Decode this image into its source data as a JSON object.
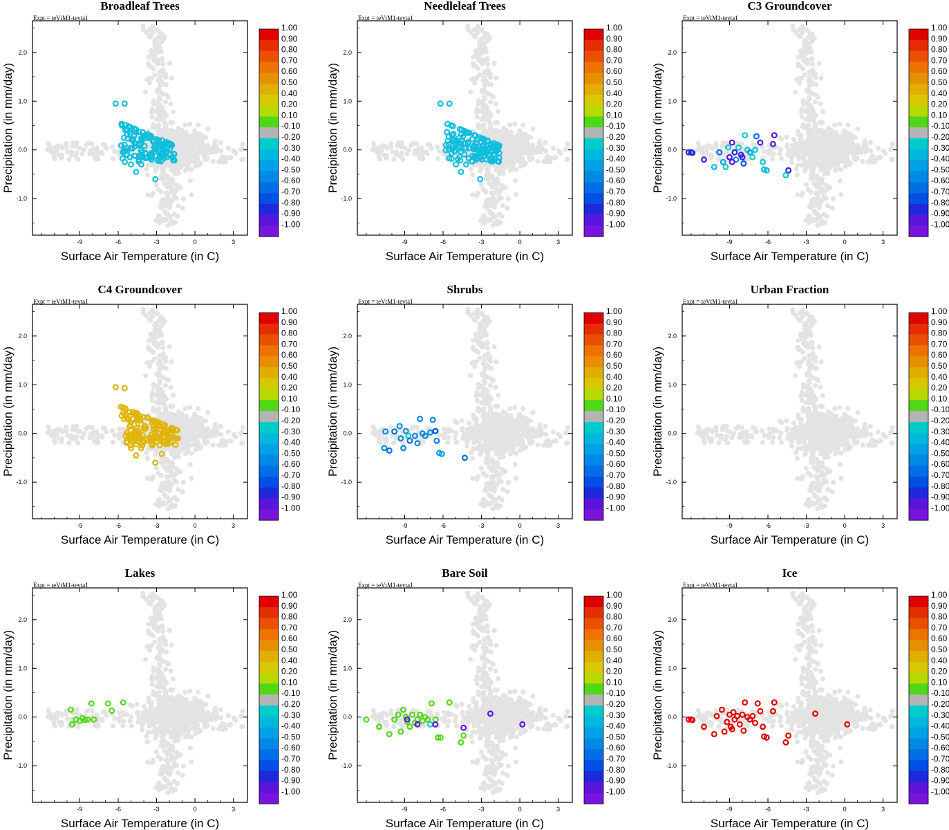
{
  "figure": {
    "expt_label": "Expt = teVtM1-tevta1",
    "xlabel": "Surface Air Temperature (in C)",
    "ylabel": "Precipitation (in mm/day)"
  },
  "colorbar": {
    "labels": [
      "1.00",
      "0.90",
      "0.80",
      "0.70",
      "0.60",
      "0.50",
      "0.40",
      "0.20",
      "0.10",
      "-0.10",
      "-0.20",
      "-0.30",
      "-0.40",
      "-0.50",
      "-0.60",
      "-0.70",
      "-0.80",
      "-0.90",
      "-1.00"
    ],
    "colors": [
      "#e00000",
      "#e62d00",
      "#eb5000",
      "#ee7200",
      "#e69000",
      "#e0ae00",
      "#d8c800",
      "#b7d800",
      "#50d818",
      "#b4b4b4",
      "#00cccc",
      "#00b8dc",
      "#00a0e6",
      "#0088e6",
      "#006ee6",
      "#0050e6",
      "#1e28dc",
      "#5a14dc",
      "#7814dc"
    ]
  },
  "chart_data": [
    {
      "type": "scatter",
      "title": "Broadleaf Trees",
      "xlabel": "Surface Air Temperature (in C)",
      "ylabel": "Precipitation (in mm/day)",
      "xlim": [
        -12.7,
        4.1
      ],
      "ylim": [
        -1.75,
        2.65
      ],
      "xticks": [
        "-9",
        "-6",
        "-3",
        "0",
        "3"
      ],
      "yticks": [
        "-1.0",
        "0.0",
        "1.0",
        "2.0"
      ],
      "background_color": "#e3e3e3",
      "highlight": {
        "color": "#10bedc",
        "cluster": {
          "x_range": [
            -5.8,
            -1.6
          ],
          "y_range": [
            -0.25,
            0.62
          ],
          "count": 130
        },
        "points": [
          [
            -6.2,
            0.95
          ],
          [
            -5.5,
            0.95
          ],
          [
            -3.1,
            -0.6
          ],
          [
            -4.6,
            -0.45
          ],
          [
            -4.2,
            -0.3
          ],
          [
            -5.0,
            -0.3
          ],
          [
            -2.0,
            -0.1
          ],
          [
            -3.4,
            -0.2
          ]
        ]
      }
    },
    {
      "type": "scatter",
      "title": "Needleleaf Trees",
      "xlabel": "Surface Air Temperature (in C)",
      "ylabel": "Precipitation (in mm/day)",
      "xlim": [
        -12.7,
        4.1
      ],
      "ylim": [
        -1.75,
        2.65
      ],
      "xticks": [
        "-9",
        "-6",
        "-3",
        "0",
        "3"
      ],
      "yticks": [
        "-1.0",
        "0.0",
        "1.0",
        "2.0"
      ],
      "background_color": "#e3e3e3",
      "highlight": {
        "color": "#10bedc",
        "cluster": {
          "x_range": [
            -5.8,
            -1.6
          ],
          "y_range": [
            -0.25,
            0.62
          ],
          "count": 130
        },
        "points": [
          [
            -6.2,
            0.95
          ],
          [
            -5.5,
            0.95
          ],
          [
            -3.1,
            -0.6
          ],
          [
            -4.6,
            -0.45
          ],
          [
            -4.2,
            -0.3
          ],
          [
            -5.0,
            -0.3
          ],
          [
            -2.0,
            -0.1
          ],
          [
            -3.4,
            -0.2
          ]
        ]
      }
    },
    {
      "type": "scatter",
      "title": "C3 Groundcover",
      "xlabel": "Surface Air Temperature (in C)",
      "ylabel": "Precipitation (in mm/day)",
      "xlim": [
        -12.7,
        4.1
      ],
      "ylim": [
        -1.75,
        2.65
      ],
      "xticks": [
        "-9",
        "-6",
        "-3",
        "0",
        "3"
      ],
      "yticks": [
        "-1.0",
        "0.0",
        "1.0",
        "2.0"
      ],
      "background_color": "#e3e3e3",
      "points": [
        {
          "x": -12.2,
          "y": -0.05,
          "value": -0.9
        },
        {
          "x": -12.0,
          "y": -0.05,
          "value": -0.9
        },
        {
          "x": -11.9,
          "y": -0.06,
          "value": -0.9
        },
        {
          "x": -11.0,
          "y": -0.2,
          "value": -0.95
        },
        {
          "x": -10.2,
          "y": -0.35,
          "value": -0.4
        },
        {
          "x": -9.8,
          "y": -0.05,
          "value": -0.7
        },
        {
          "x": -9.5,
          "y": -0.25,
          "value": -0.5
        },
        {
          "x": -9.3,
          "y": -0.35,
          "value": -0.3
        },
        {
          "x": -9.1,
          "y": 0.05,
          "value": -0.3
        },
        {
          "x": -9.0,
          "y": -0.15,
          "value": -0.95
        },
        {
          "x": -8.8,
          "y": 0.15,
          "value": -0.95
        },
        {
          "x": -8.6,
          "y": -0.05,
          "value": -0.9
        },
        {
          "x": -8.5,
          "y": -0.2,
          "value": -0.6
        },
        {
          "x": -8.3,
          "y": 0.05,
          "value": -0.3
        },
        {
          "x": -8.1,
          "y": -0.1,
          "value": -0.95
        },
        {
          "x": -8.0,
          "y": -0.15,
          "value": -0.9
        },
        {
          "x": -7.8,
          "y": 0.3,
          "value": -0.3
        },
        {
          "x": -7.6,
          "y": 0.0,
          "value": -0.3
        },
        {
          "x": -7.4,
          "y": -0.05,
          "value": -0.5
        },
        {
          "x": -7.2,
          "y": -0.15,
          "value": -0.3
        },
        {
          "x": -7.0,
          "y": 0.0,
          "value": -0.3
        },
        {
          "x": -6.9,
          "y": 0.28,
          "value": -0.7
        },
        {
          "x": -6.6,
          "y": 0.15,
          "value": -0.95
        },
        {
          "x": -6.4,
          "y": -0.25,
          "value": -0.3
        },
        {
          "x": -6.3,
          "y": -0.4,
          "value": -0.4
        },
        {
          "x": -6.1,
          "y": -0.42,
          "value": -0.4
        },
        {
          "x": -5.6,
          "y": 0.12,
          "value": -0.95
        },
        {
          "x": -5.5,
          "y": 0.3,
          "value": -0.95
        },
        {
          "x": -4.4,
          "y": -0.42,
          "value": -0.9
        },
        {
          "x": -4.6,
          "y": -0.52,
          "value": -0.3
        },
        {
          "x": -7.9,
          "y": -0.28,
          "value": -0.8
        },
        {
          "x": -8.8,
          "y": -0.25,
          "value": -0.95
        }
      ]
    },
    {
      "type": "scatter",
      "title": "C4 Groundcover",
      "xlabel": "Surface Air Temperature (in C)",
      "ylabel": "Precipitation (in mm/day)",
      "xlim": [
        -12.7,
        4.1
      ],
      "ylim": [
        -1.75,
        2.65
      ],
      "xticks": [
        "-9",
        "-6",
        "-3",
        "0",
        "3"
      ],
      "yticks": [
        "-1.0",
        "0.0",
        "1.0",
        "2.0"
      ],
      "background_color": "#e3e3e3",
      "highlight": {
        "color": "#e0b400",
        "cluster": {
          "x_range": [
            -5.8,
            -1.3
          ],
          "y_range": [
            -0.25,
            0.62
          ],
          "count": 140
        },
        "points": [
          [
            -6.2,
            0.95
          ],
          [
            -5.5,
            0.93
          ],
          [
            -3.1,
            -0.6
          ],
          [
            -4.6,
            -0.45
          ],
          [
            -4.2,
            -0.3
          ],
          [
            -5.0,
            -0.3
          ],
          [
            -2.0,
            -0.1
          ],
          [
            -3.4,
            -0.2
          ],
          [
            -2.6,
            -0.42
          ]
        ]
      }
    },
    {
      "type": "scatter",
      "title": "Shrubs",
      "xlabel": "Surface Air Temperature (in C)",
      "ylabel": "Precipitation (in mm/day)",
      "xlim": [
        -12.7,
        4.1
      ],
      "ylim": [
        -1.75,
        2.65
      ],
      "xticks": [
        "-9",
        "-6",
        "-3",
        "0",
        "3"
      ],
      "yticks": [
        "-1.0",
        "0.0",
        "1.0",
        "2.0"
      ],
      "background_color": "#e3e3e3",
      "points": [
        {
          "x": -10.5,
          "y": 0.04,
          "value": -0.6
        },
        {
          "x": -10.2,
          "y": -0.35,
          "value": -0.7
        },
        {
          "x": -9.8,
          "y": 0.04,
          "value": -0.7
        },
        {
          "x": -9.4,
          "y": 0.15,
          "value": -0.45
        },
        {
          "x": -9.3,
          "y": -0.1,
          "value": -0.55
        },
        {
          "x": -9.1,
          "y": -0.3,
          "value": -0.6
        },
        {
          "x": -8.9,
          "y": 0.05,
          "value": -0.6
        },
        {
          "x": -8.7,
          "y": -0.05,
          "value": -0.3
        },
        {
          "x": -8.6,
          "y": -0.15,
          "value": -0.7
        },
        {
          "x": -8.2,
          "y": -0.05,
          "value": -0.6
        },
        {
          "x": -8.0,
          "y": -0.2,
          "value": -0.6
        },
        {
          "x": -7.8,
          "y": 0.3,
          "value": -0.55
        },
        {
          "x": -7.6,
          "y": 0.0,
          "value": -0.55
        },
        {
          "x": -7.4,
          "y": -0.05,
          "value": -0.6
        },
        {
          "x": -7.0,
          "y": 0.02,
          "value": -0.6
        },
        {
          "x": -6.8,
          "y": 0.28,
          "value": -0.55
        },
        {
          "x": -6.5,
          "y": -0.15,
          "value": -0.55
        },
        {
          "x": -6.3,
          "y": -0.4,
          "value": -0.5
        },
        {
          "x": -6.1,
          "y": -0.42,
          "value": -0.5
        },
        {
          "x": -6.6,
          "y": 0.05,
          "value": -0.8
        },
        {
          "x": -4.3,
          "y": -0.5,
          "value": -0.7
        },
        {
          "x": -10.6,
          "y": -0.3,
          "value": -0.6
        }
      ]
    },
    {
      "type": "scatter",
      "title": "Urban Fraction",
      "xlabel": "Surface Air Temperature (in C)",
      "ylabel": "Precipitation (in mm/day)",
      "xlim": [
        -12.7,
        4.1
      ],
      "ylim": [
        -1.75,
        2.65
      ],
      "xticks": [
        "-9",
        "-6",
        "-3",
        "0",
        "3"
      ],
      "yticks": [
        "-1.0",
        "0.0",
        "1.0",
        "2.0"
      ],
      "background_color": "#e3e3e3",
      "points": []
    },
    {
      "type": "scatter",
      "title": "Lakes",
      "xlabel": "Surface Air Temperature (in C)",
      "ylabel": "Precipitation (in mm/day)",
      "xlim": [
        -12.7,
        4.1
      ],
      "ylim": [
        -1.75,
        2.65
      ],
      "xticks": [
        "-9",
        "-6",
        "-3",
        "0",
        "3"
      ],
      "yticks": [
        "-1.0",
        "0.0",
        "1.0",
        "2.0"
      ],
      "background_color": "#e3e3e3",
      "points": [
        {
          "x": -9.7,
          "y": 0.15,
          "value": 0.0
        },
        {
          "x": -9.6,
          "y": -0.15,
          "value": 0.0
        },
        {
          "x": -9.3,
          "y": -0.05,
          "value": 0.0
        },
        {
          "x": -9.0,
          "y": -0.08,
          "value": 0.0
        },
        {
          "x": -8.8,
          "y": -0.02,
          "value": 0.0
        },
        {
          "x": -8.6,
          "y": -0.06,
          "value": 0.0
        },
        {
          "x": -8.4,
          "y": -0.05,
          "value": 0.0
        },
        {
          "x": -8.1,
          "y": 0.28,
          "value": 0.0
        },
        {
          "x": -7.9,
          "y": -0.05,
          "value": 0.0
        },
        {
          "x": -6.8,
          "y": 0.28,
          "value": 0.0
        },
        {
          "x": -6.5,
          "y": 0.13,
          "value": 0.0
        },
        {
          "x": -5.6,
          "y": 0.3,
          "value": 0.0
        }
      ]
    },
    {
      "type": "scatter",
      "title": "Bare Soil",
      "xlabel": "Surface Air Temperature (in C)",
      "ylabel": "Precipitation (in mm/day)",
      "xlim": [
        -12.7,
        4.1
      ],
      "ylim": [
        -1.75,
        2.65
      ],
      "xticks": [
        "-9",
        "-6",
        "-3",
        "0",
        "3"
      ],
      "yticks": [
        "-1.0",
        "0.0",
        "1.0",
        "2.0"
      ],
      "background_color": "#e3e3e3",
      "points": [
        {
          "x": -12.0,
          "y": -0.05,
          "value": 0.0
        },
        {
          "x": -11.0,
          "y": -0.2,
          "value": 0.0
        },
        {
          "x": -10.2,
          "y": -0.35,
          "value": 0.0
        },
        {
          "x": -9.8,
          "y": -0.05,
          "value": 0.0
        },
        {
          "x": -9.5,
          "y": 0.05,
          "value": 0.0
        },
        {
          "x": -9.3,
          "y": -0.3,
          "value": 0.0
        },
        {
          "x": -9.1,
          "y": 0.15,
          "value": 0.0
        },
        {
          "x": -8.9,
          "y": 0.0,
          "value": 0.0
        },
        {
          "x": -8.8,
          "y": -0.1,
          "value": 0.0
        },
        {
          "x": -8.6,
          "y": -0.2,
          "value": 0.0
        },
        {
          "x": -8.4,
          "y": 0.05,
          "value": 0.0
        },
        {
          "x": -8.2,
          "y": -0.12,
          "value": 0.0
        },
        {
          "x": -8.0,
          "y": -0.05,
          "value": 0.0
        },
        {
          "x": -7.8,
          "y": 0.05,
          "value": 0.0
        },
        {
          "x": -7.6,
          "y": -0.08,
          "value": 0.0
        },
        {
          "x": -7.4,
          "y": 0.0,
          "value": 0.0
        },
        {
          "x": -7.2,
          "y": -0.05,
          "value": 0.0
        },
        {
          "x": -6.9,
          "y": 0.28,
          "value": 0.0
        },
        {
          "x": -6.6,
          "y": -0.05,
          "value": 0.0
        },
        {
          "x": -6.4,
          "y": -0.42,
          "value": 0.0
        },
        {
          "x": -6.2,
          "y": -0.42,
          "value": 0.0
        },
        {
          "x": -5.5,
          "y": 0.3,
          "value": 0.0
        },
        {
          "x": -4.4,
          "y": -0.38,
          "value": 0.0
        },
        {
          "x": -4.6,
          "y": -0.52,
          "value": 0.0
        },
        {
          "x": -8.8,
          "y": -0.05,
          "value": -0.95
        },
        {
          "x": -8.0,
          "y": -0.15,
          "value": -0.95
        },
        {
          "x": -7.0,
          "y": -0.15,
          "value": -0.25
        },
        {
          "x": -6.6,
          "y": -0.15,
          "value": -0.95
        },
        {
          "x": -4.4,
          "y": -0.22,
          "value": -0.95
        },
        {
          "x": -2.3,
          "y": 0.07,
          "value": -0.95
        },
        {
          "x": 0.2,
          "y": -0.15,
          "value": -0.95
        }
      ]
    },
    {
      "type": "scatter",
      "title": "Ice",
      "xlabel": "Surface Air Temperature (in C)",
      "ylabel": "Precipitation (in mm/day)",
      "xlim": [
        -12.7,
        4.1
      ],
      "ylim": [
        -1.75,
        2.65
      ],
      "xticks": [
        "-9",
        "-6",
        "-3",
        "0",
        "3"
      ],
      "yticks": [
        "-1.0",
        "0.0",
        "1.0",
        "2.0"
      ],
      "background_color": "#e3e3e3",
      "points": [
        {
          "x": -12.2,
          "y": -0.05,
          "value": 0.95
        },
        {
          "x": -12.0,
          "y": -0.05,
          "value": 0.95
        },
        {
          "x": -11.9,
          "y": -0.06,
          "value": 0.95
        },
        {
          "x": -11.0,
          "y": -0.2,
          "value": 0.95
        },
        {
          "x": -10.2,
          "y": -0.35,
          "value": 0.95
        },
        {
          "x": -10.0,
          "y": 0.02,
          "value": 0.95
        },
        {
          "x": -9.6,
          "y": 0.15,
          "value": 0.95
        },
        {
          "x": -9.4,
          "y": -0.3,
          "value": 0.95
        },
        {
          "x": -9.2,
          "y": -0.1,
          "value": 0.95
        },
        {
          "x": -9.0,
          "y": 0.05,
          "value": 0.95
        },
        {
          "x": -8.9,
          "y": -0.2,
          "value": 0.95
        },
        {
          "x": -8.7,
          "y": 0.1,
          "value": 0.95
        },
        {
          "x": -8.6,
          "y": -0.05,
          "value": 0.95
        },
        {
          "x": -8.4,
          "y": 0.02,
          "value": 0.95
        },
        {
          "x": -8.2,
          "y": -0.15,
          "value": 0.95
        },
        {
          "x": -8.0,
          "y": 0.05,
          "value": 0.95
        },
        {
          "x": -7.8,
          "y": 0.3,
          "value": 0.95
        },
        {
          "x": -7.6,
          "y": 0.0,
          "value": 0.95
        },
        {
          "x": -7.4,
          "y": -0.05,
          "value": 0.95
        },
        {
          "x": -7.2,
          "y": 0.02,
          "value": 0.95
        },
        {
          "x": -7.0,
          "y": -0.12,
          "value": 0.95
        },
        {
          "x": -6.8,
          "y": 0.28,
          "value": 0.95
        },
        {
          "x": -6.6,
          "y": 0.12,
          "value": 0.95
        },
        {
          "x": -6.4,
          "y": -0.2,
          "value": 0.95
        },
        {
          "x": -6.3,
          "y": -0.4,
          "value": 0.95
        },
        {
          "x": -6.1,
          "y": -0.42,
          "value": 0.95
        },
        {
          "x": -5.6,
          "y": 0.12,
          "value": 0.95
        },
        {
          "x": -5.5,
          "y": 0.3,
          "value": 0.95
        },
        {
          "x": -4.4,
          "y": -0.38,
          "value": 0.95
        },
        {
          "x": -4.6,
          "y": -0.52,
          "value": 0.95
        },
        {
          "x": -2.3,
          "y": 0.07,
          "value": 0.95
        },
        {
          "x": 0.2,
          "y": -0.15,
          "value": 0.95
        },
        {
          "x": -7.9,
          "y": -0.28,
          "value": 0.95
        },
        {
          "x": -8.8,
          "y": -0.25,
          "value": 0.95
        }
      ]
    }
  ]
}
